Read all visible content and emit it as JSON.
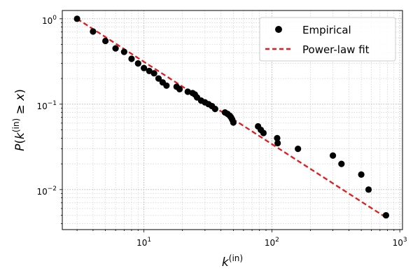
{
  "chart_data": {
    "type": "scatter",
    "xscale": "log",
    "yscale": "log",
    "xlim": [
      2.3,
      1050
    ],
    "ylim": [
      0.0034,
      1.25
    ],
    "grid": "both major and minor, dotted gray",
    "legend_position": "top-right",
    "xlabel": "k^(in)",
    "ylabel": "P(k^(in) ≥ x)",
    "xticks": [
      {
        "value": 10,
        "base": "10",
        "exp": "1"
      },
      {
        "value": 100,
        "base": "10",
        "exp": "2"
      },
      {
        "value": 1000,
        "base": "10",
        "exp": "3"
      }
    ],
    "yticks": [
      {
        "value": 0.01,
        "base": "10",
        "exp": "−2"
      },
      {
        "value": 0.1,
        "base": "10",
        "exp": "−1"
      },
      {
        "value": 1,
        "base": "10",
        "exp": "0"
      }
    ],
    "series": [
      {
        "name": "Empirical",
        "kind": "points",
        "color": "#000000",
        "points": [
          [
            3,
            1.0
          ],
          [
            4,
            0.71
          ],
          [
            5,
            0.55
          ],
          [
            6,
            0.45
          ],
          [
            7,
            0.41
          ],
          [
            8,
            0.34
          ],
          [
            9,
            0.3
          ],
          [
            10,
            0.265
          ],
          [
            11,
            0.245
          ],
          [
            12,
            0.23
          ],
          [
            13,
            0.2
          ],
          [
            14,
            0.18
          ],
          [
            15,
            0.165
          ],
          [
            18,
            0.16
          ],
          [
            19,
            0.15
          ],
          [
            22,
            0.14
          ],
          [
            24,
            0.135
          ],
          [
            25,
            0.13
          ],
          [
            26,
            0.12
          ],
          [
            28,
            0.11
          ],
          [
            30,
            0.105
          ],
          [
            32,
            0.1
          ],
          [
            34,
            0.095
          ],
          [
            36,
            0.088
          ],
          [
            43,
            0.08
          ],
          [
            45,
            0.077
          ],
          [
            47,
            0.073
          ],
          [
            48,
            0.07
          ],
          [
            49,
            0.066
          ],
          [
            50,
            0.061
          ],
          [
            78,
            0.055
          ],
          [
            82,
            0.05
          ],
          [
            86,
            0.046
          ],
          [
            110,
            0.04
          ],
          [
            111,
            0.035
          ],
          [
            160,
            0.03
          ],
          [
            300,
            0.025
          ],
          [
            350,
            0.02
          ],
          [
            500,
            0.015
          ],
          [
            570,
            0.01
          ],
          [
            780,
            0.005
          ]
        ]
      },
      {
        "name": "Power-law fit",
        "kind": "dashed-line",
        "color": "#e41a1c",
        "points": [
          [
            3,
            1.0
          ],
          [
            800,
            0.0046
          ]
        ]
      }
    ]
  }
}
